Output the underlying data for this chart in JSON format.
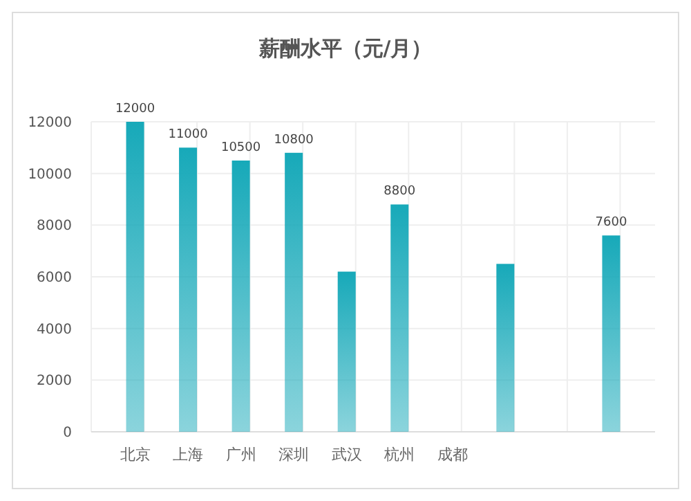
{
  "chart_data": {
    "type": "bar",
    "title": "薪酬水平（元/月）",
    "categories": [
      "北京",
      "上海",
      "广州",
      "深圳",
      "武汉",
      "杭州",
      "成都",
      null,
      null,
      null
    ],
    "values": [
      12000,
      11000,
      10500,
      10800,
      6200,
      8800,
      null,
      6500,
      null,
      7600
    ],
    "value_labels": [
      "12000",
      "11000",
      "10500",
      "10800",
      null,
      "8800",
      null,
      null,
      null,
      "7600"
    ],
    "color": "#17a9b9",
    "ylim": [
      0,
      12000
    ],
    "yticks": [
      0,
      2000,
      4000,
      6000,
      8000,
      10000,
      12000
    ],
    "grid": true
  }
}
